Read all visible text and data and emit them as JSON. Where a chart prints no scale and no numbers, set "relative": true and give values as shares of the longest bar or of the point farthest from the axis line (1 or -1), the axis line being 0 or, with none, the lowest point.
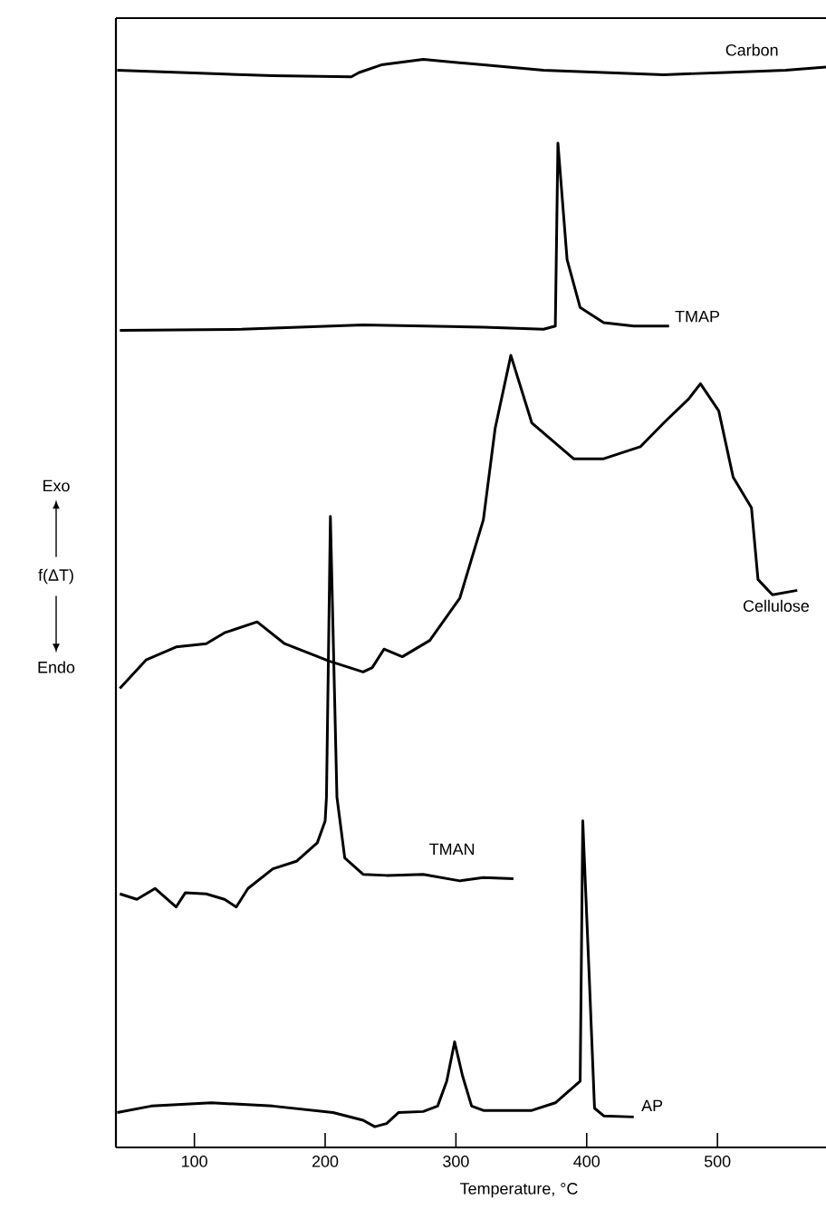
{
  "chart_data": {
    "type": "line",
    "relative": true,
    "xlabel": "Temperature, °C",
    "ylabel": "f(ΔT)",
    "annotations": [
      "Exo",
      "Endo"
    ],
    "xlim": [
      40,
      583
    ],
    "xticks": [
      100,
      200,
      300,
      400,
      500
    ],
    "grid": false,
    "marker": "none",
    "line_style": "solid",
    "series": [
      {
        "name": "Carbon",
        "color": "#000000",
        "x": [
          41,
          90,
          160,
          220,
          226,
          243,
          275,
          321,
          367,
          413,
          459,
          506,
          552,
          583
        ],
        "values": [
          0.99,
          0.988,
          0.985,
          0.984,
          0.988,
          0.995,
          1.0,
          0.995,
          0.99,
          0.988,
          0.986,
          0.988,
          0.99,
          0.993
        ]
      },
      {
        "name": "TMAP",
        "color": "#000000",
        "x": [
          43,
          136,
          229,
          321,
          367,
          376,
          378,
          385,
          395,
          413,
          436,
          463
        ],
        "values": [
          0.751,
          0.752,
          0.756,
          0.754,
          0.752,
          0.755,
          0.923,
          0.816,
          0.772,
          0.758,
          0.755,
          0.755
        ]
      },
      {
        "name": "Cellulose",
        "color": "#000000",
        "x": [
          43,
          63,
          86,
          109,
          123,
          148,
          169,
          203,
          229,
          236,
          245,
          259,
          280,
          303,
          321,
          330,
          342,
          358,
          390,
          413,
          441,
          459,
          478,
          487,
          501,
          512,
          526,
          531,
          542,
          561
        ],
        "values": [
          0.422,
          0.448,
          0.46,
          0.463,
          0.473,
          0.483,
          0.463,
          0.447,
          0.437,
          0.441,
          0.458,
          0.451,
          0.466,
          0.505,
          0.577,
          0.661,
          0.728,
          0.666,
          0.633,
          0.633,
          0.644,
          0.666,
          0.688,
          0.702,
          0.677,
          0.616,
          0.588,
          0.522,
          0.508,
          0.512
        ]
      },
      {
        "name": "TMAN",
        "color": "#000000",
        "x": [
          43,
          56,
          70,
          86,
          93,
          109,
          123,
          132,
          141,
          160,
          178,
          194,
          200,
          201,
          204,
          209,
          215,
          229,
          247,
          275,
          303,
          321,
          344
        ],
        "values": [
          0.233,
          0.228,
          0.238,
          0.221,
          0.234,
          0.233,
          0.228,
          0.221,
          0.238,
          0.256,
          0.263,
          0.28,
          0.3,
          0.322,
          0.58,
          0.322,
          0.266,
          0.251,
          0.25,
          0.251,
          0.245,
          0.248,
          0.247
        ]
      },
      {
        "name": "AP",
        "color": "#000000",
        "x": [
          41,
          67,
          113,
          160,
          206,
          229,
          238,
          247,
          256,
          275,
          286,
          293,
          299,
          305,
          312,
          321,
          358,
          376,
          395,
          397,
          402,
          406,
          413,
          436
        ],
        "values": [
          0.032,
          0.038,
          0.041,
          0.038,
          0.032,
          0.025,
          0.019,
          0.022,
          0.032,
          0.033,
          0.038,
          0.061,
          0.097,
          0.066,
          0.038,
          0.034,
          0.034,
          0.041,
          0.061,
          0.3,
          0.155,
          0.036,
          0.029,
          0.028
        ]
      }
    ]
  }
}
